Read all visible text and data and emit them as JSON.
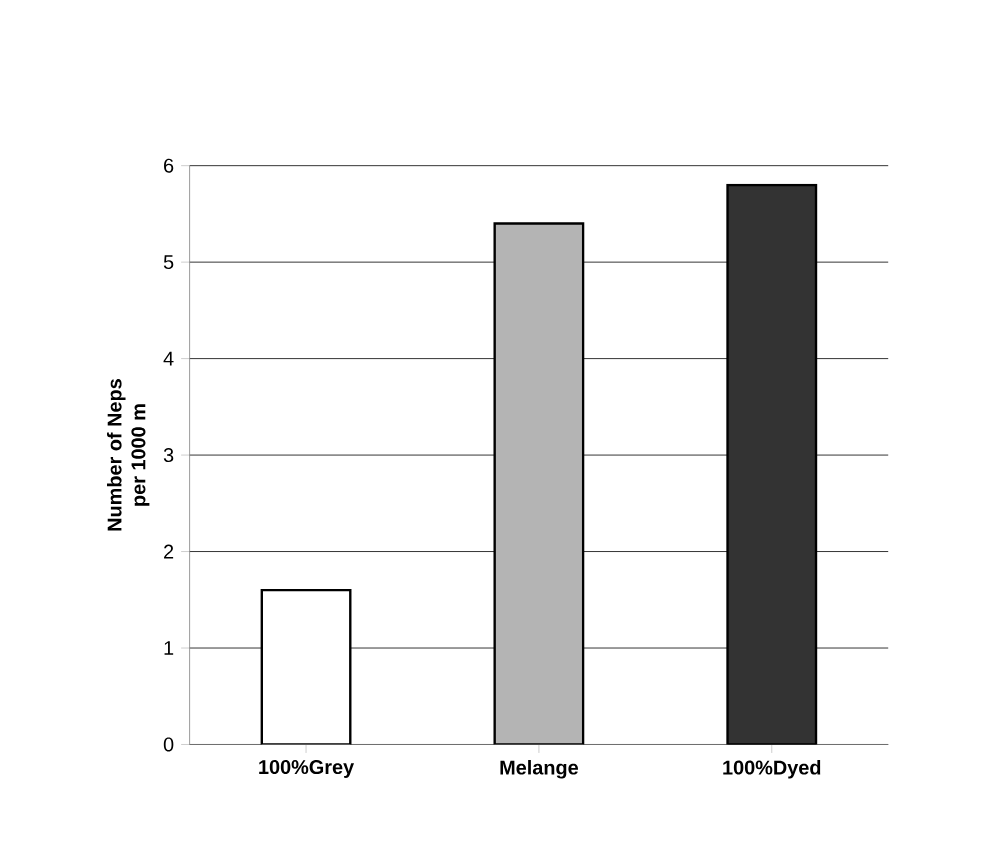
{
  "chart_data": {
    "type": "bar",
    "ylabel": "Number of Neps per 1000 m",
    "categories": [
      "100%Grey",
      "Melange",
      "100%Dyed"
    ],
    "values": [
      1.6,
      5.4,
      5.8
    ],
    "colors": [
      "#ffffff",
      "#b4b4b4",
      "#333333"
    ],
    "ylim": [
      0,
      6
    ],
    "yticks": [
      0,
      1,
      2,
      3,
      4,
      5,
      6
    ],
    "grid": "y"
  }
}
